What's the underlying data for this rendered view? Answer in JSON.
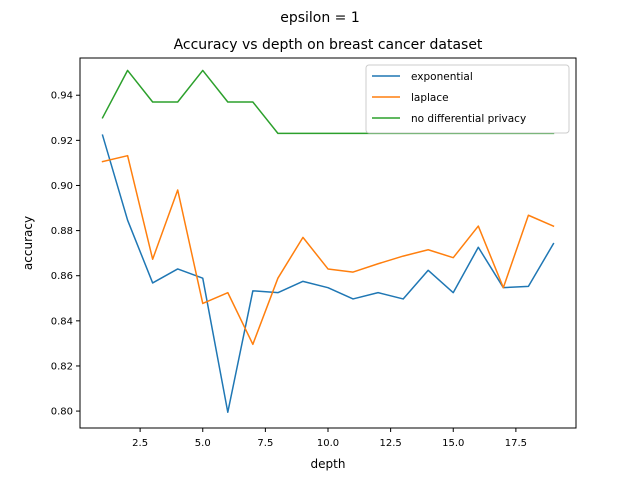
{
  "chart_data": {
    "type": "line",
    "suptitle": "epsilon = 1",
    "title": "Accuracy vs depth on breast cancer dataset",
    "xlabel": "depth",
    "ylabel": "accuracy",
    "xlim": [
      0.1,
      19.9
    ],
    "ylim": [
      0.7925,
      0.9565
    ],
    "xticks": [
      2.5,
      5.0,
      7.5,
      10.0,
      12.5,
      15.0,
      17.5
    ],
    "xtick_labels": [
      "2.5",
      "5.0",
      "7.5",
      "10.0",
      "12.5",
      "15.0",
      "17.5"
    ],
    "yticks": [
      0.8,
      0.82,
      0.84,
      0.86,
      0.88,
      0.9,
      0.92,
      0.94
    ],
    "ytick_labels": [
      "0.80",
      "0.82",
      "0.84",
      "0.86",
      "0.88",
      "0.90",
      "0.92",
      "0.94"
    ],
    "grid": false,
    "legend_position": "top-right",
    "x": [
      1,
      2,
      3,
      4,
      5,
      6,
      7,
      8,
      9,
      10,
      11,
      12,
      13,
      14,
      15,
      16,
      17,
      18,
      19
    ],
    "series": [
      {
        "name": "exponential",
        "color": "#1f77b4",
        "values": [
          0.9223,
          0.8846,
          0.8568,
          0.863,
          0.8589,
          0.7995,
          0.8533,
          0.8525,
          0.8575,
          0.8547,
          0.8497,
          0.8525,
          0.8497,
          0.8624,
          0.8525,
          0.8726,
          0.8547,
          0.8553,
          0.8742
        ]
      },
      {
        "name": "laplace",
        "color": "#ff7f0e",
        "values": [
          0.9106,
          0.9132,
          0.8673,
          0.898,
          0.8477,
          0.8525,
          0.8296,
          0.8589,
          0.877,
          0.863,
          0.8616,
          0.8653,
          0.8687,
          0.8715,
          0.868,
          0.882,
          0.8547,
          0.8868,
          0.882
        ]
      },
      {
        "name": "no differential privacy",
        "color": "#2ca02c",
        "values": [
          0.93,
          0.951,
          0.937,
          0.937,
          0.951,
          0.937,
          0.937,
          0.9231,
          0.9231,
          0.9231,
          0.9231,
          0.9231,
          0.9231,
          0.9231,
          0.9231,
          0.9231,
          0.9231,
          0.9231,
          0.9231
        ]
      }
    ]
  }
}
